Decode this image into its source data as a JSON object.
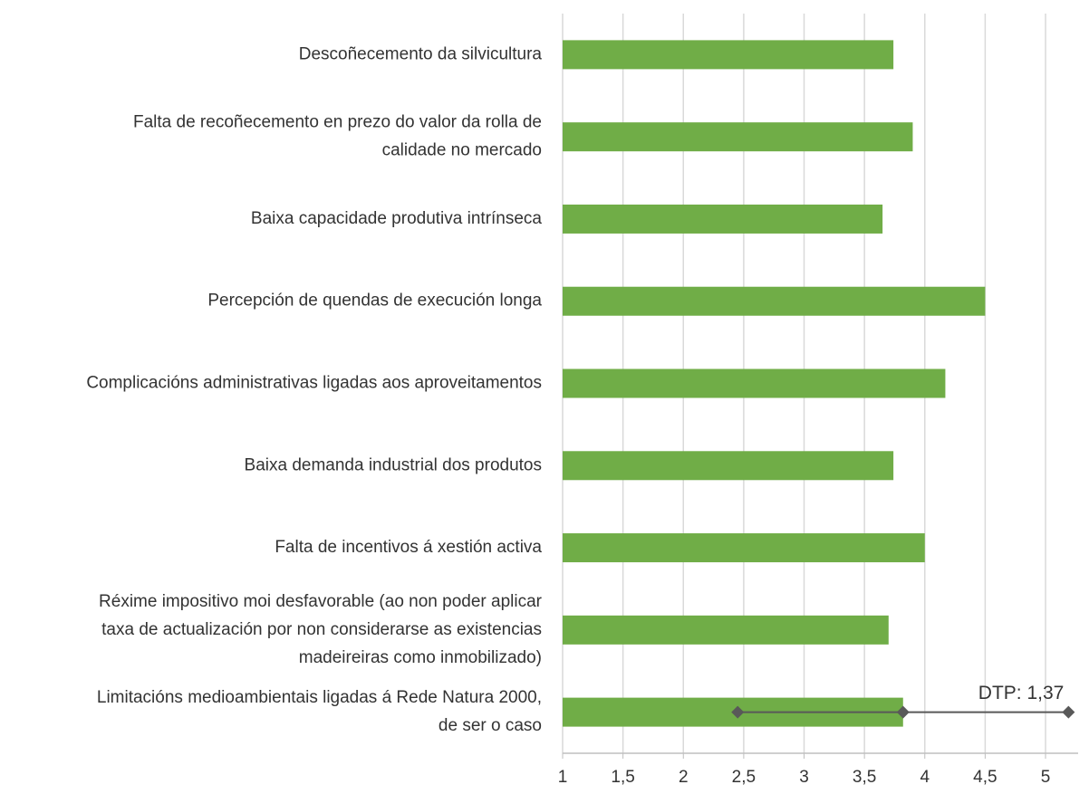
{
  "chart_data": {
    "type": "bar",
    "orientation": "horizontal",
    "categories": [
      "Descoñecemento da silvicultura",
      "Falta de recoñecemento en prezo do valor da rolla de\ncalidade no mercado",
      "Baixa capacidade produtiva intrínseca",
      "Percepción de quendas de execución longa",
      "Complicacións administrativas ligadas aos aproveitamentos",
      "Baixa demanda industrial dos produtos",
      "Falta de incentivos á xestión activa",
      "Réxime impositivo moi desfavorable (ao non poder aplicar\ntaxa de actualización por non considerarse as existencias\nmadeireiras como inmobilizado)",
      "Limitacións medioambientais ligadas á Rede Natura 2000,\nde ser o caso"
    ],
    "values": [
      3.74,
      3.9,
      3.65,
      4.5,
      4.17,
      3.74,
      4.0,
      3.7,
      3.82
    ],
    "errors": [
      null,
      null,
      null,
      null,
      null,
      null,
      null,
      null,
      1.37
    ],
    "annotation": "DTP: 1,37",
    "color": "#70ad47",
    "error_color": "#595959",
    "xlim": [
      1,
      5.27
    ],
    "xticks": [
      1,
      {
        "value": 1.5,
        "label": "1,5"
      },
      2,
      {
        "value": 2.5,
        "label": "2,5"
      },
      3,
      {
        "value": 3.5,
        "label": "3,5"
      },
      4,
      {
        "value": 4.5,
        "label": "4,5"
      },
      5
    ],
    "grid": true
  }
}
